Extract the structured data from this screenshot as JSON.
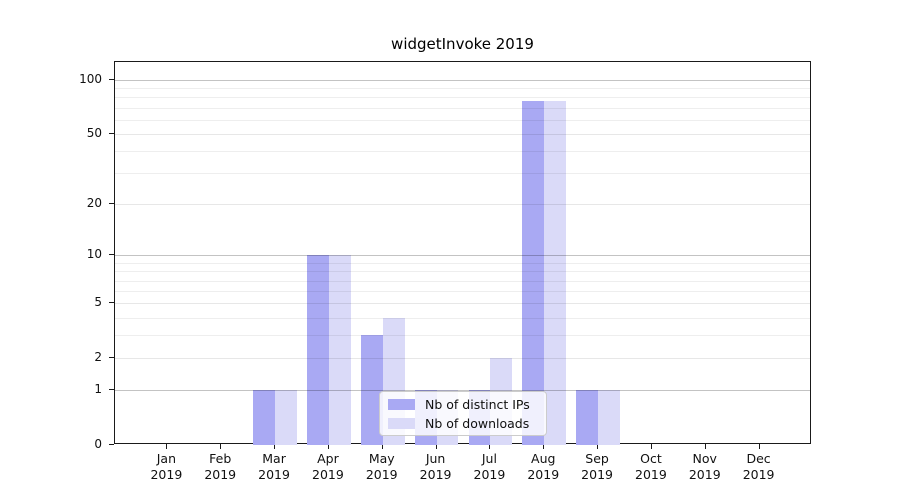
{
  "title": "widgetInvoke 2019",
  "chart_data": {
    "type": "bar",
    "title": "widgetInvoke 2019",
    "categories": [
      "Jan",
      "Feb",
      "Mar",
      "Apr",
      "May",
      "Jun",
      "Jul",
      "Aug",
      "Sep",
      "Oct",
      "Nov",
      "Dec"
    ],
    "x_year_label": "2019",
    "series": [
      {
        "name": "Nb of distinct IPs",
        "color": "#a9a9f3",
        "values": [
          0,
          0,
          1,
          10,
          3,
          1,
          1,
          76,
          1,
          0,
          0,
          0
        ]
      },
      {
        "name": "Nb of downloads",
        "color": "#dadaf8",
        "values": [
          0,
          0,
          1,
          10,
          4,
          1,
          2,
          76,
          1,
          0,
          0,
          0
        ]
      }
    ],
    "yscale": "log1p",
    "ylim": [
      0,
      126
    ],
    "y_major_ticks": [
      0,
      1,
      2,
      5,
      10,
      20,
      50,
      100
    ],
    "y_minor_ticks": [
      3,
      4,
      6,
      7,
      8,
      9,
      30,
      40,
      60,
      70,
      80,
      90
    ],
    "grid": "horizontal",
    "legend_position": "lower-center",
    "background_color": "#ffffff",
    "grid_major_values": [
      1,
      10,
      100
    ]
  }
}
